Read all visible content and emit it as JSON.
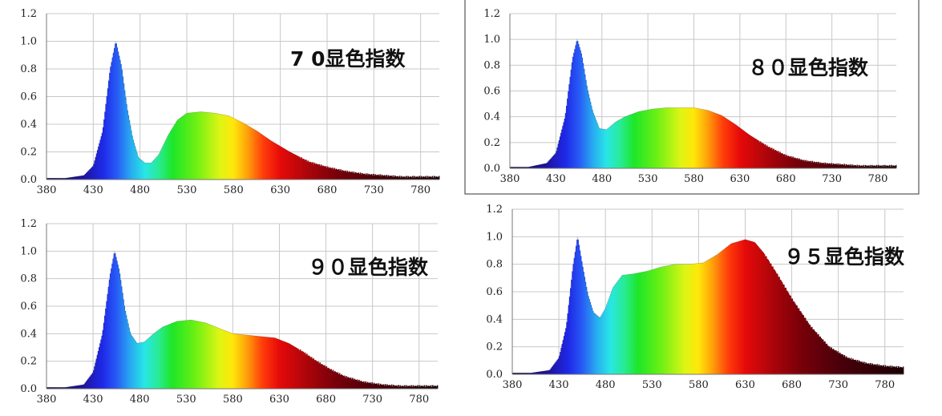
{
  "chart_data": [
    {
      "type": "area",
      "annotation": "7 0显色指数",
      "xlim": [
        380,
        800
      ],
      "ylim": [
        0,
        1.2
      ],
      "xticks": [
        "380",
        "430",
        "480",
        "530",
        "580",
        "630",
        "680",
        "730",
        "780"
      ],
      "yticks": [
        "0.0",
        "0.2",
        "0.4",
        "0.6",
        "0.8",
        "1.0",
        "1.2"
      ],
      "grid": true,
      "x": [
        380,
        400,
        420,
        430,
        440,
        448,
        454,
        460,
        466,
        472,
        478,
        485,
        492,
        500,
        510,
        520,
        530,
        545,
        560,
        575,
        590,
        605,
        620,
        640,
        660,
        680,
        700,
        720,
        740,
        760,
        780,
        800
      ],
      "y": [
        0.01,
        0.01,
        0.03,
        0.1,
        0.35,
        0.8,
        1.0,
        0.82,
        0.52,
        0.3,
        0.16,
        0.12,
        0.12,
        0.18,
        0.32,
        0.43,
        0.48,
        0.49,
        0.48,
        0.46,
        0.41,
        0.35,
        0.28,
        0.2,
        0.13,
        0.09,
        0.06,
        0.04,
        0.03,
        0.02,
        0.02,
        0.02
      ]
    },
    {
      "type": "area",
      "annotation": "８０显色指数",
      "xlim": [
        380,
        800
      ],
      "ylim": [
        0,
        1.2
      ],
      "xticks": [
        "380",
        "430",
        "480",
        "530",
        "580",
        "630",
        "680",
        "730",
        "780"
      ],
      "yticks": [
        "0.0",
        "0.2",
        "0.4",
        "0.6",
        "0.8",
        "1.0",
        "1.2"
      ],
      "grid": true,
      "x": [
        380,
        400,
        420,
        430,
        440,
        448,
        453,
        458,
        464,
        470,
        477,
        485,
        495,
        505,
        520,
        535,
        550,
        565,
        580,
        595,
        610,
        625,
        640,
        660,
        680,
        700,
        720,
        740,
        760,
        780,
        800
      ],
      "y": [
        0.01,
        0.01,
        0.04,
        0.12,
        0.4,
        0.85,
        1.0,
        0.88,
        0.62,
        0.44,
        0.31,
        0.3,
        0.36,
        0.4,
        0.44,
        0.46,
        0.47,
        0.47,
        0.47,
        0.45,
        0.41,
        0.34,
        0.26,
        0.17,
        0.1,
        0.06,
        0.04,
        0.03,
        0.02,
        0.02,
        0.02
      ]
    },
    {
      "type": "area",
      "annotation": "９０显色指数",
      "xlim": [
        380,
        800
      ],
      "ylim": [
        0,
        1.2
      ],
      "xticks": [
        "380",
        "430",
        "480",
        "530",
        "580",
        "630",
        "680",
        "730",
        "780"
      ],
      "yticks": [
        "0.0",
        "0.2",
        "0.4",
        "0.6",
        "0.8",
        "1.0",
        "1.2"
      ],
      "grid": true,
      "x": [
        380,
        400,
        420,
        430,
        440,
        448,
        453,
        458,
        464,
        470,
        477,
        485,
        495,
        505,
        520,
        535,
        550,
        565,
        580,
        595,
        610,
        625,
        640,
        655,
        670,
        685,
        700,
        720,
        740,
        760,
        780,
        800
      ],
      "y": [
        0.01,
        0.01,
        0.03,
        0.12,
        0.4,
        0.82,
        1.0,
        0.86,
        0.58,
        0.4,
        0.33,
        0.34,
        0.4,
        0.45,
        0.49,
        0.5,
        0.48,
        0.44,
        0.4,
        0.39,
        0.38,
        0.37,
        0.33,
        0.27,
        0.2,
        0.14,
        0.09,
        0.05,
        0.03,
        0.02,
        0.02,
        0.02
      ]
    },
    {
      "type": "area",
      "annotation": "９５显色指数",
      "xlim": [
        380,
        800
      ],
      "ylim": [
        0,
        1.2
      ],
      "xticks": [
        "380",
        "430",
        "480",
        "530",
        "580",
        "630",
        "680",
        "730",
        "780"
      ],
      "yticks": [
        "0.0",
        "0.2",
        "0.4",
        "0.6",
        "0.8",
        "1.0",
        "1.2"
      ],
      "grid": true,
      "x": [
        380,
        400,
        420,
        430,
        438,
        445,
        450,
        455,
        461,
        467,
        474,
        480,
        488,
        498,
        510,
        525,
        540,
        555,
        570,
        585,
        600,
        615,
        630,
        640,
        650,
        665,
        680,
        700,
        720,
        740,
        760,
        780,
        800
      ],
      "y": [
        0.01,
        0.01,
        0.03,
        0.12,
        0.35,
        0.78,
        1.0,
        0.8,
        0.58,
        0.45,
        0.41,
        0.48,
        0.63,
        0.72,
        0.73,
        0.75,
        0.78,
        0.8,
        0.8,
        0.81,
        0.87,
        0.95,
        0.98,
        0.96,
        0.88,
        0.72,
        0.55,
        0.35,
        0.2,
        0.12,
        0.08,
        0.06,
        0.05
      ]
    }
  ]
}
